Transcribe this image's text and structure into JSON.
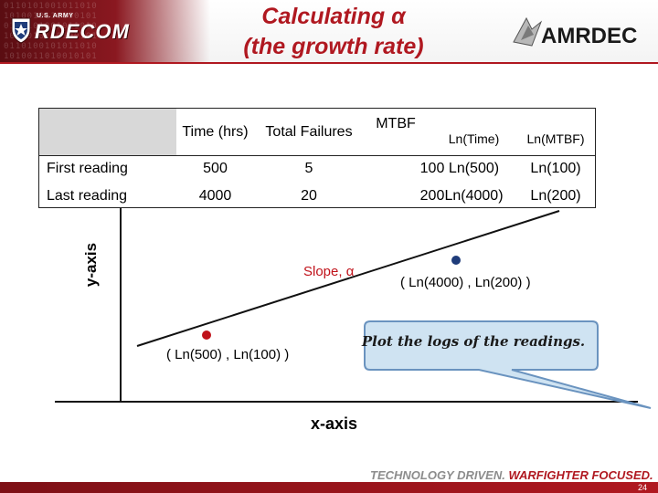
{
  "header": {
    "title_line1": "Calculating α",
    "title_line2": "(the growth rate)",
    "left_logo_small": "U.S. ARMY",
    "left_logo_word": "RDECOM",
    "right_logo_word": "AMRDEC"
  },
  "table": {
    "columns": [
      "Time (hrs)",
      "Total Failures",
      "MTBF",
      "Ln(Time)",
      "Ln(MTBF)"
    ],
    "rows": [
      {
        "label": "First reading",
        "cells": [
          "500",
          "5",
          "100",
          "Ln(500)",
          "Ln(100)"
        ]
      },
      {
        "label": "Last reading",
        "cells": [
          "4000",
          "20",
          "200",
          "Ln(4000)",
          "Ln(200)"
        ]
      }
    ]
  },
  "plot": {
    "y_axis_label": "y-axis",
    "x_axis_label": "x-axis",
    "slope_label": "Slope, α",
    "point_first_label": "( Ln(500) , Ln(100) )",
    "point_last_label": "( Ln(4000) , Ln(200) )",
    "callout_text": "Plot the logs of the readings.",
    "colors": {
      "first_point": "#c0121a",
      "last_point": "#1f3c7a",
      "slope_label": "#c0121a",
      "callout_fill": "#cfe3f2",
      "callout_border": "#6a93bf"
    }
  },
  "footer": {
    "tagline_part1": "TECHNOLOGY DRIVEN.",
    "tagline_part2": "WARFIGHTER FOCUSED.",
    "page_number": "24"
  }
}
